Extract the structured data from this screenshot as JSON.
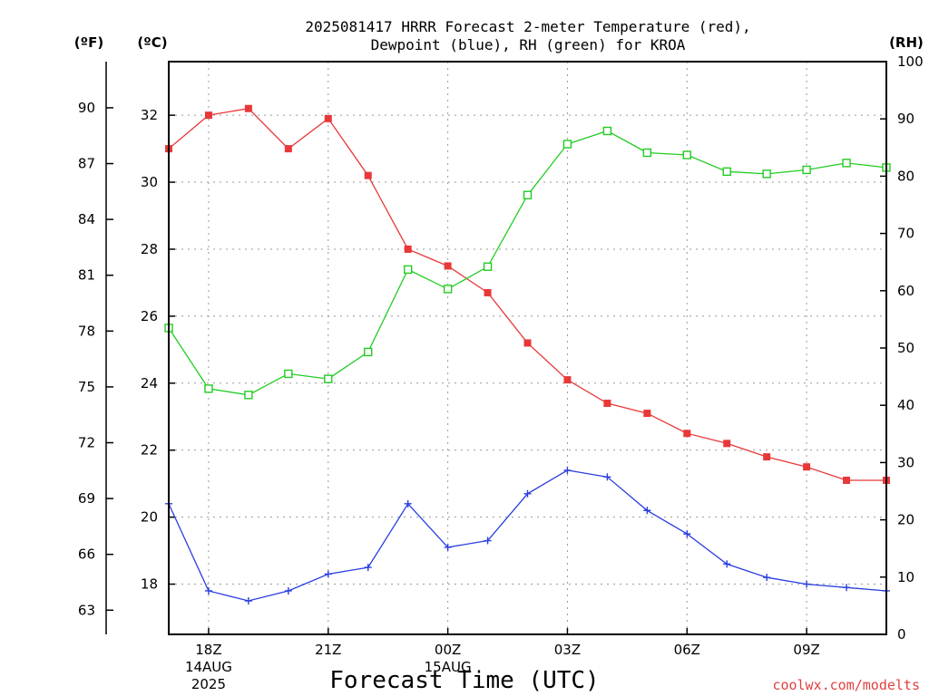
{
  "chart_data": {
    "type": "line",
    "title_lines": [
      "2025081417 HRRR Forecast 2-meter Temperature (red),",
      "Dewpoint (blue), RH (green) for KROA"
    ],
    "xlabel": "Forecast Time (UTC)",
    "credit": "coolwx.com/modelts",
    "units": {
      "fahrenheit": "(ºF)",
      "celsius": "(ºC)",
      "rh": "(RH)"
    },
    "x_hours": [
      17,
      18,
      19,
      20,
      21,
      22,
      23,
      24,
      25,
      26,
      27,
      28,
      29,
      30,
      31,
      32,
      33,
      34,
      35
    ],
    "x_ticks": [
      {
        "hour": 18,
        "lines": [
          "18Z",
          "14AUG",
          "2025"
        ]
      },
      {
        "hour": 21,
        "lines": [
          "21Z"
        ]
      },
      {
        "hour": 24,
        "lines": [
          "00Z",
          "15AUG"
        ]
      },
      {
        "hour": 27,
        "lines": [
          "03Z"
        ]
      },
      {
        "hour": 30,
        "lines": [
          "06Z"
        ]
      },
      {
        "hour": 33,
        "lines": [
          "09Z"
        ]
      }
    ],
    "celsius_range": [
      16.5,
      33.6
    ],
    "celsius_ticks": [
      18,
      20,
      22,
      24,
      26,
      28,
      30,
      32
    ],
    "fahrenheit_ticks": [
      63,
      66,
      69,
      72,
      75,
      78,
      81,
      84,
      87,
      90
    ],
    "rh_range": [
      0,
      100
    ],
    "rh_ticks": [
      0,
      10,
      20,
      30,
      40,
      50,
      60,
      70,
      80,
      90,
      100
    ],
    "grid": true,
    "series": [
      {
        "key": "temperature",
        "color": "#e83838",
        "marker": "filled-square",
        "axis": "celsius",
        "values": [
          31.0,
          32.0,
          32.2,
          31.0,
          31.9,
          30.2,
          28.0,
          27.5,
          26.7,
          25.2,
          24.1,
          23.4,
          23.1,
          22.5,
          22.2,
          21.8,
          21.5,
          21.1,
          21.1
        ]
      },
      {
        "key": "dewpoint",
        "color": "#2a3ee0",
        "marker": "plus",
        "axis": "celsius",
        "values": [
          20.4,
          17.8,
          17.5,
          17.8,
          18.3,
          18.5,
          20.4,
          19.1,
          19.3,
          20.7,
          21.4,
          21.2,
          20.2,
          19.5,
          18.6,
          18.2,
          18.0,
          17.9,
          17.8
        ]
      },
      {
        "key": "rh",
        "color": "#22cc22",
        "marker": "open-square",
        "axis": "rh",
        "values": [
          53.5,
          42.9,
          41.8,
          45.5,
          44.6,
          49.3,
          63.7,
          60.3,
          64.2,
          76.7,
          85.6,
          87.9,
          84.1,
          83.7,
          80.8,
          80.4,
          81.1,
          82.3,
          81.5
        ]
      }
    ]
  }
}
